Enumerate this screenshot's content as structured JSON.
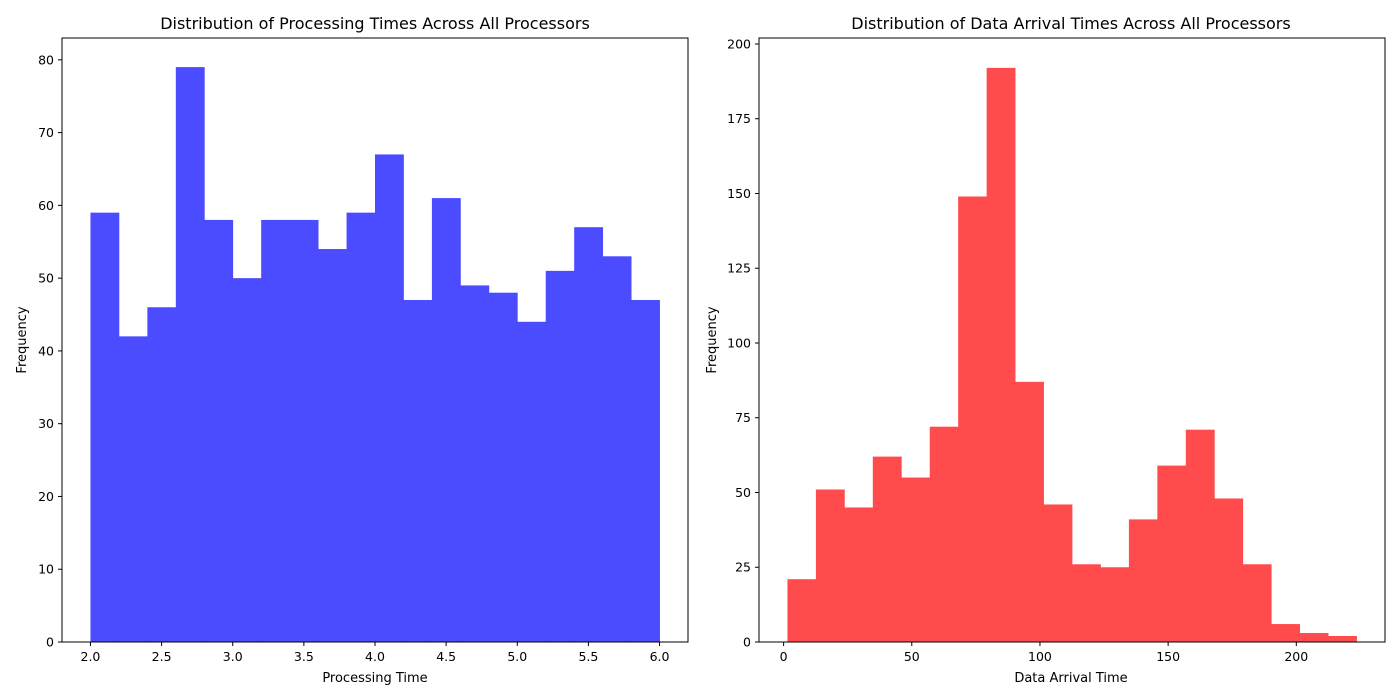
{
  "chart_data": [
    {
      "type": "bar",
      "title": "Distribution of Processing Times Across All Processors",
      "xlabel": "Processing Time",
      "ylabel": "Frequency",
      "bin_edges": [
        2.0,
        2.2,
        2.4,
        2.6,
        2.8,
        3.0,
        3.2,
        3.4,
        3.6,
        3.8,
        4.0,
        4.2,
        4.4,
        4.6,
        4.8,
        5.0,
        5.2,
        5.4,
        5.6,
        5.8,
        6.0
      ],
      "values": [
        59,
        42,
        46,
        79,
        58,
        50,
        58,
        58,
        54,
        59,
        67,
        47,
        61,
        49,
        48,
        44,
        51,
        57,
        53,
        47
      ],
      "xlim": [
        1.8,
        6.2
      ],
      "ylim": [
        0,
        83
      ],
      "xticks": [
        2.0,
        2.5,
        3.0,
        3.5,
        4.0,
        4.5,
        5.0,
        5.5,
        6.0
      ],
      "xtick_labels": [
        "2.0",
        "2.5",
        "3.0",
        "3.5",
        "4.0",
        "4.5",
        "5.0",
        "5.5",
        "6.0"
      ],
      "yticks": [
        0,
        10,
        20,
        30,
        40,
        50,
        60,
        70,
        80
      ],
      "ytick_labels": [
        "0",
        "10",
        "20",
        "30",
        "40",
        "50",
        "60",
        "70",
        "80"
      ],
      "color": "#4b4bff",
      "grid": false
    },
    {
      "type": "bar",
      "title": "Distribution of Data Arrival Times Across All Processors",
      "xlabel": "Data Arrival Time",
      "ylabel": "Frequency",
      "bin_edges": [
        1.5,
        12.6,
        23.7,
        34.8,
        45.9,
        57.0,
        68.1,
        79.2,
        90.3,
        101.4,
        112.5,
        123.6,
        134.7,
        145.8,
        156.9,
        168.0,
        179.1,
        190.2,
        201.3,
        212.4,
        223.5
      ],
      "values": [
        21,
        51,
        45,
        62,
        55,
        72,
        149,
        192,
        87,
        46,
        26,
        25,
        41,
        59,
        71,
        48,
        26,
        6,
        3,
        2
      ],
      "xlim": [
        -9.6,
        234.6
      ],
      "ylim": [
        0,
        202
      ],
      "xticks": [
        0,
        50,
        100,
        150,
        200
      ],
      "xtick_labels": [
        "0",
        "50",
        "100",
        "150",
        "200"
      ],
      "yticks": [
        0,
        25,
        50,
        75,
        100,
        125,
        150,
        175,
        200
      ],
      "ytick_labels": [
        "0",
        "25",
        "50",
        "75",
        "100",
        "125",
        "150",
        "175",
        "200"
      ],
      "color": "#ff4b4b",
      "grid": false
    }
  ]
}
